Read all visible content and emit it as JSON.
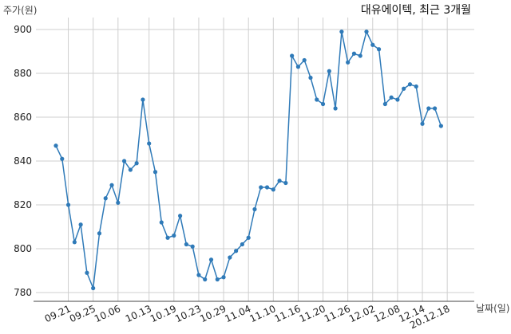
{
  "chart_data": {
    "type": "line",
    "title": "대유에이텍, 최근 3개월",
    "xlabel": "날짜(일)",
    "ylabel": "주가(원)",
    "ylim": [
      775,
      905
    ],
    "y_ticks": [
      780,
      800,
      820,
      840,
      860,
      880,
      900
    ],
    "x_tick_labels": [
      "09.21",
      "09.25",
      "10.06",
      "10.13",
      "10.19",
      "10.23",
      "10.29",
      "11.04",
      "11.10",
      "11.16",
      "11.20",
      "11.26",
      "12.02",
      "12.08",
      "12.14",
      "20.12.18"
    ],
    "x_tick_indices": [
      2,
      6,
      10,
      15,
      19,
      23,
      27,
      31,
      35,
      39,
      43,
      47,
      51,
      55,
      59,
      63
    ],
    "grid": true,
    "line_color": "#2f7ab8",
    "series": [
      {
        "values": [
          847,
          841,
          820,
          803,
          811,
          789,
          782,
          807,
          823,
          829,
          821,
          840,
          836,
          839,
          868,
          848,
          835,
          812,
          805,
          806,
          815,
          802,
          801,
          788,
          786,
          795,
          786,
          787,
          796,
          799,
          802,
          805,
          818,
          828,
          828,
          827,
          831,
          830,
          888,
          883,
          886,
          878,
          868,
          866,
          881,
          864,
          899,
          885,
          889,
          888,
          899,
          893,
          891,
          866,
          869,
          868,
          873,
          875,
          874,
          857,
          864,
          864,
          856
        ]
      }
    ]
  }
}
